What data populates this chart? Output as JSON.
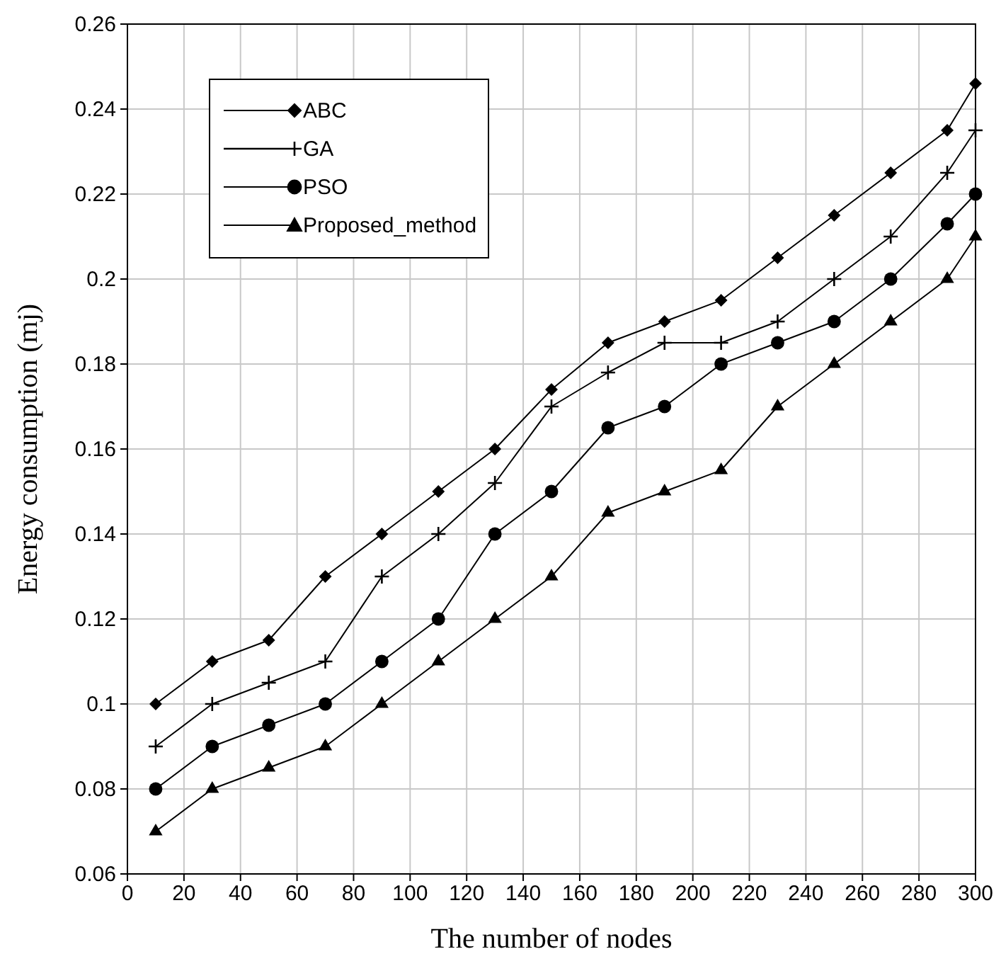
{
  "chart_data": {
    "type": "line",
    "xlabel": "The number of nodes",
    "ylabel": "Energy consumption (mj)",
    "x": [
      10,
      30,
      50,
      70,
      90,
      110,
      130,
      150,
      170,
      190,
      210,
      230,
      250,
      270,
      290,
      300
    ],
    "series": [
      {
        "name": "ABC",
        "color": "#000000",
        "marker": "diamond",
        "values": [
          0.1,
          0.11,
          0.115,
          0.13,
          0.14,
          0.15,
          0.16,
          0.174,
          0.185,
          0.19,
          0.195,
          0.205,
          0.215,
          0.225,
          0.235,
          0.246
        ]
      },
      {
        "name": "GA",
        "color": "#000000",
        "marker": "cross",
        "values": [
          0.09,
          0.1,
          0.105,
          0.11,
          0.13,
          0.14,
          0.152,
          0.17,
          0.178,
          0.185,
          0.185,
          0.19,
          0.2,
          0.21,
          0.225,
          0.235
        ]
      },
      {
        "name": "PSO",
        "color": "#000000",
        "marker": "circle",
        "values": [
          0.08,
          0.09,
          0.095,
          0.1,
          0.11,
          0.12,
          0.14,
          0.15,
          0.165,
          0.17,
          0.18,
          0.185,
          0.19,
          0.2,
          0.213,
          0.22
        ]
      },
      {
        "name": "Proposed_method",
        "color": "#000000",
        "marker": "triangle",
        "values": [
          0.07,
          0.08,
          0.085,
          0.09,
          0.1,
          0.11,
          0.12,
          0.13,
          0.145,
          0.15,
          0.155,
          0.17,
          0.18,
          0.19,
          0.2,
          0.21
        ]
      }
    ],
    "xlim": [
      0,
      300
    ],
    "xticks": [
      0,
      20,
      40,
      60,
      80,
      100,
      120,
      140,
      160,
      180,
      200,
      220,
      240,
      260,
      280,
      300
    ],
    "ylim": [
      0.06,
      0.26
    ],
    "yticks": [
      0.06,
      0.08,
      0.1,
      0.12,
      0.14,
      0.16,
      0.18,
      0.2,
      0.22,
      0.24,
      0.26
    ],
    "grid": true,
    "legend": "top left",
    "line_style": "solid"
  }
}
